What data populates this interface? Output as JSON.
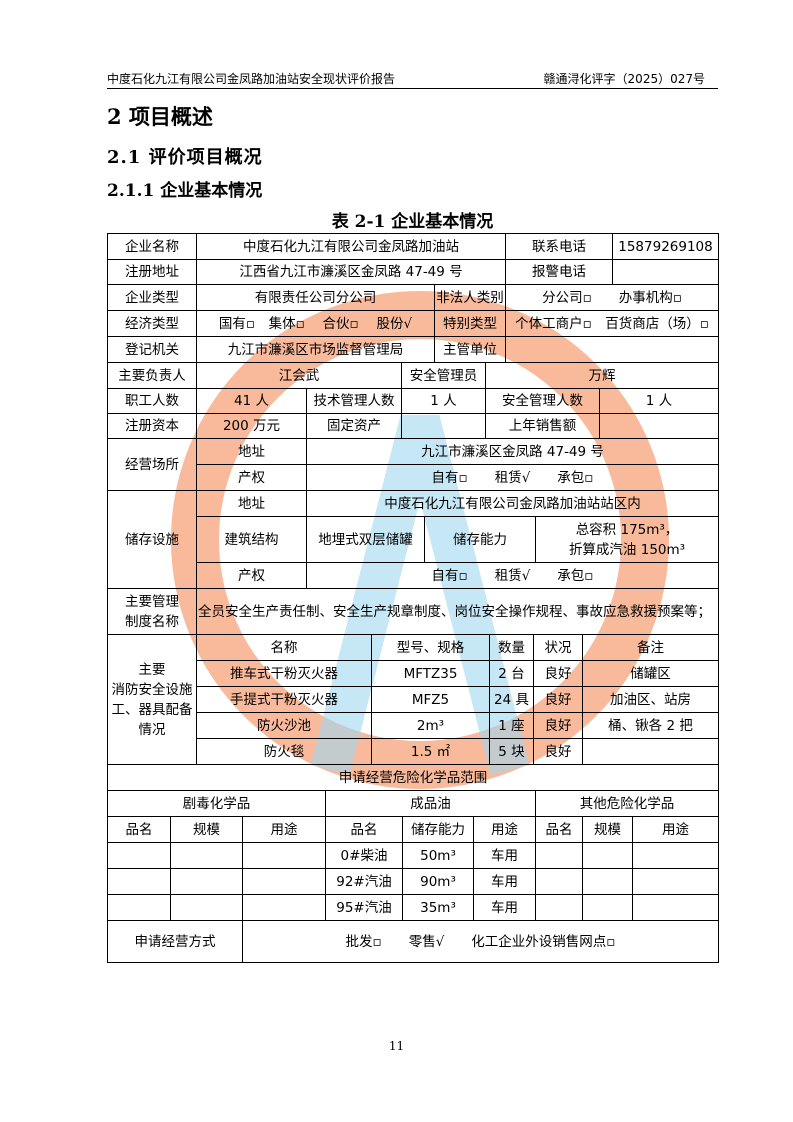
{
  "header": {
    "left": "中度石化九江有限公司金凤路加油站安全现状评价报告",
    "right": "赣通浔化评字（2025）027号"
  },
  "headings": {
    "h1": "2 项目概述",
    "h2": "2.1 评价项目概况",
    "h3": "2.1.1 企业基本情况",
    "table_caption": "表 2-1  企业基本情况"
  },
  "watermark_colors": {
    "ring": "#f7a37a",
    "text": "#9fd7f0"
  },
  "t": {
    "name_l": "企业名称",
    "name_v": "中度石化九江有限公司金凤路加油站",
    "tel_l": "联系电话",
    "tel_v": "15879269108",
    "addr_l": "注册地址",
    "addr_v": "江西省九江市濂溪区金凤路 47-49 号",
    "alarm_l": "报警电话",
    "alarm_v": "",
    "type_l": "企业类型",
    "type_v": "有限责任公司分公司",
    "nonlegal_l": "非法人类别",
    "nonlegal_v": "分公司▫　　办事机构▫",
    "econ_l": "经济类型",
    "econ_v": "国有▫　集体▫　 合伙▫　 股份√",
    "special_l": "特别类型",
    "special_v": "个体工商户▫　百货商店（场）▫",
    "reg_l": "登记机关",
    "reg_v": "九江市濂溪区市场监督管理局",
    "sup_l": "主管单位",
    "sup_v": "",
    "head_l": "主要负责人",
    "head_v": "江会武",
    "safety_l": "安全管理员",
    "safety_v": "万辉",
    "staff_l": "职工人数",
    "staff_v": "41 人",
    "tech_l": "技术管理人数",
    "tech_v": "1 人",
    "safen_l": "安全管理人数",
    "safen_v": "1 人",
    "cap_l": "注册资本",
    "cap_v": "200 万元",
    "fixed_l": "固定资产",
    "fixed_v": "",
    "sales_l": "上年销售额",
    "sales_v": "",
    "site_l": "经营场所",
    "site_addr_l": "地址",
    "site_addr_v": "九江市濂溪区金凤路 47-49 号",
    "site_prop_l": "产权",
    "site_prop_v": "自有▫　　租赁√　　承包▫",
    "store_l": "储存设施",
    "store_addr_l": "地址",
    "store_addr_v": "中度石化九江有限公司金凤路加油站站区内",
    "struct_l": "建筑结构",
    "struct_v": "地埋式双层储罐",
    "cap2_l": "储存能力",
    "cap2_v1": "总容积 175m³，",
    "cap2_v2": "折算成汽油 150m³",
    "store_prop_l": "产权",
    "store_prop_v": "自有▫　　租赁√　　承包▫",
    "mgmt_l1": "主要管理",
    "mgmt_l2": "制度名称",
    "mgmt_v": "全员安全生产责任制、安全生产规章制度、岗位安全操作规程、事故应急救援预案等；",
    "fire_l": [
      "主要",
      "消防安全设施",
      "工、器具配备",
      "情况"
    ],
    "fire_head": [
      "名称",
      "型号、规格",
      "数量",
      "状况",
      "备注"
    ],
    "fire_rows": [
      [
        "推车式干粉灭火器",
        "MFTZ35",
        "2 台",
        "良好",
        "储罐区"
      ],
      [
        "手提式干粉灭火器",
        "MFZ5",
        "24 具",
        "良好",
        "加油区、站房"
      ],
      [
        "防火沙池",
        "2m³",
        "1 座",
        "良好",
        "桶、锹各 2 把"
      ],
      [
        "防火毯",
        "1.5 ㎡",
        "5 块",
        "良好",
        ""
      ]
    ],
    "chem_title": "申请经营危险化学品范围",
    "chem_groups": [
      "剧毒化学品",
      "成品油",
      "其他危险化学品"
    ],
    "chem_head": [
      "品名",
      "规模",
      "用途",
      "品名",
      "储存能力",
      "用途",
      "品名",
      "规模",
      "用途"
    ],
    "chem_rows": [
      [
        "",
        "",
        "",
        "0#柴油",
        "50m³",
        "车用",
        "",
        "",
        ""
      ],
      [
        "",
        "",
        "",
        "92#汽油",
        "90m³",
        "车用",
        "",
        "",
        ""
      ],
      [
        "",
        "",
        "",
        "95#汽油",
        "35m³",
        "车用",
        "",
        "",
        ""
      ]
    ],
    "mode_l": "申请经营方式",
    "mode_v": "批发▫　　零售√　　化工企业外设销售网点▫"
  },
  "page_number": "11"
}
